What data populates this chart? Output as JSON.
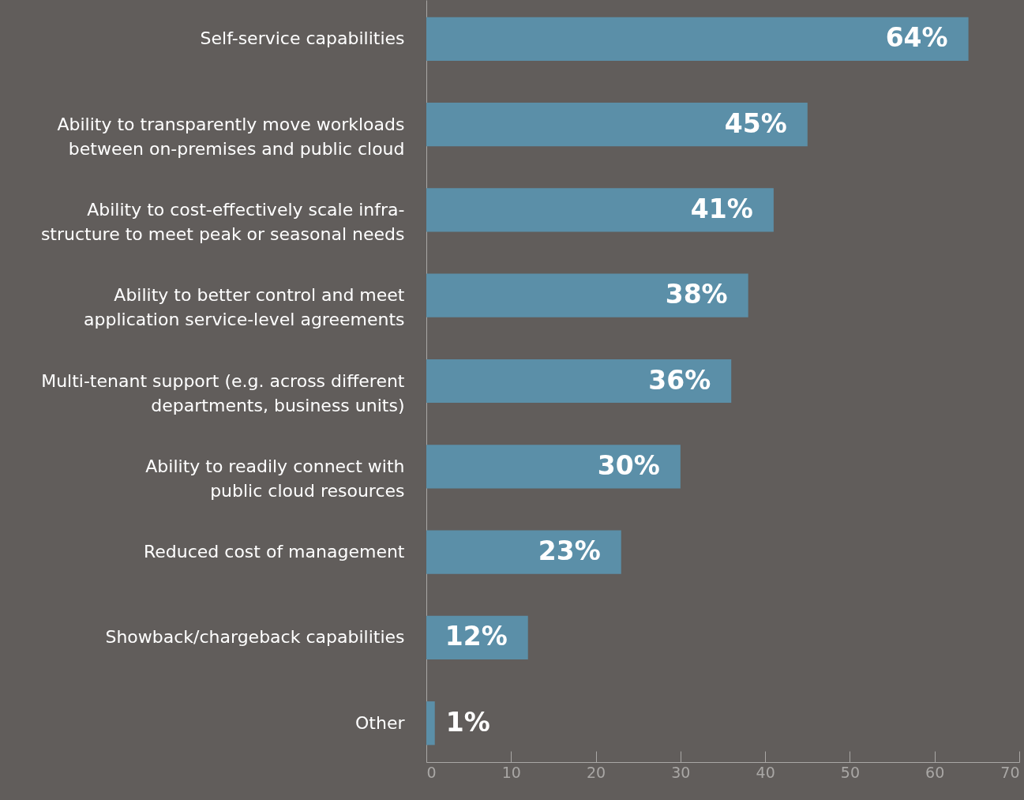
{
  "chart_data": {
    "type": "bar",
    "orientation": "horizontal",
    "categories": [
      "Self-service capabilities",
      "Ability to transparently move workloads\nbetween on-premises and public cloud",
      "Ability to cost-effectively scale infra-\nstructure to meet peak or seasonal needs",
      "Ability to better control and meet\napplication service-level agreements",
      "Multi-tenant support (e.g. across different\ndepartments, business units)",
      "Ability to readily connect with\npublic cloud resources",
      "Reduced cost of management",
      "Showback/chargeback capabilities",
      "Other"
    ],
    "values": [
      64,
      45,
      41,
      38,
      36,
      30,
      23,
      12,
      1
    ],
    "value_labels": [
      "64%",
      "45%",
      "41%",
      "38%",
      "36%",
      "30%",
      "23%",
      "12%",
      "1%"
    ],
    "color": "#5b8fa8",
    "xlim": [
      0,
      70
    ],
    "xticks": [
      0,
      10,
      20,
      30,
      40,
      50,
      60,
      70
    ],
    "grid": false
  }
}
